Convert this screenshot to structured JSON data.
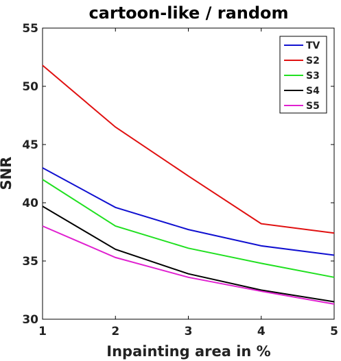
{
  "chart_data": {
    "type": "line",
    "title": "cartoon-like / random",
    "xlabel": "Inpainting area in %",
    "ylabel": "SNR",
    "x": [
      1,
      2,
      3,
      4,
      5
    ],
    "xlim": [
      1,
      5
    ],
    "ylim": [
      30,
      55
    ],
    "xticks": [
      1,
      2,
      3,
      4,
      5
    ],
    "yticks": [
      30,
      35,
      40,
      45,
      50,
      55
    ],
    "grid": false,
    "legend_position": "top-right",
    "series": [
      {
        "name": "TV",
        "color": "#1010d0",
        "values": [
          43.0,
          39.6,
          37.7,
          36.3,
          35.5
        ]
      },
      {
        "name": "S2",
        "color": "#e01010",
        "values": [
          51.8,
          46.5,
          42.3,
          38.2,
          37.4
        ]
      },
      {
        "name": "S3",
        "color": "#20e020",
        "values": [
          42.0,
          38.0,
          36.1,
          34.8,
          33.6
        ]
      },
      {
        "name": "S4",
        "color": "#000000",
        "values": [
          39.7,
          36.0,
          33.9,
          32.5,
          31.5
        ]
      },
      {
        "name": "S5",
        "color": "#e020d0",
        "values": [
          38.0,
          35.3,
          33.6,
          32.4,
          31.3
        ]
      }
    ]
  }
}
